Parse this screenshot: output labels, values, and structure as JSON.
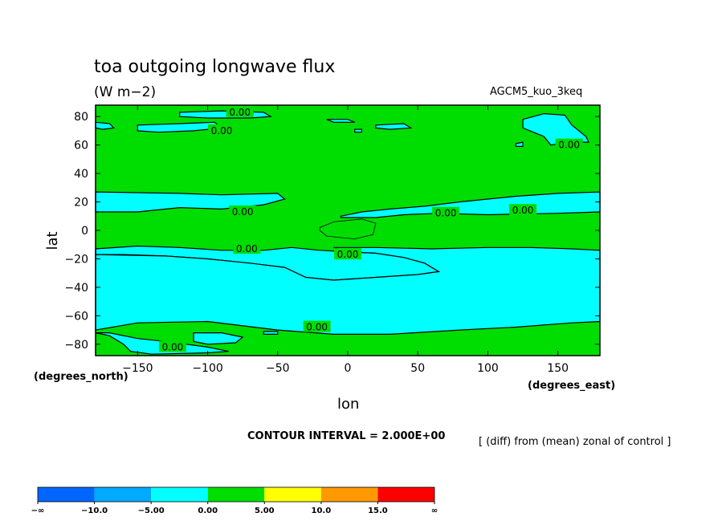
{
  "title": "toa outgoing longwave flux",
  "units": "(W m−2)",
  "model": "AGCM5_kuo_3keq",
  "contour_interval": "CONTOUR INTERVAL = 2.000E+00",
  "diff_note": "[ (diff) from (mean) zonal of control ]",
  "chart_data": {
    "type": "contour",
    "title": "toa outgoing longwave flux",
    "xlabel": "lon",
    "ylabel": "lat",
    "x_unit_label": "(degrees_east)",
    "y_unit_label": "(degrees_north)",
    "xlim": [
      -180,
      180
    ],
    "ylim": [
      -88,
      88
    ],
    "x_ticks": [
      -150,
      -100,
      -50,
      0,
      50,
      100,
      150
    ],
    "y_ticks": [
      80,
      60,
      40,
      20,
      0,
      -20,
      -40,
      -60,
      -80
    ],
    "x_tick_labels": [
      "−150",
      "−100",
      "−50",
      "0",
      "50",
      "100",
      "150"
    ],
    "y_tick_labels": [
      "80",
      "60",
      "40",
      "20",
      "0",
      "−20",
      "−40",
      "−60",
      "−80"
    ],
    "background_color": "#00dd00",
    "negative_color": "#00ffff",
    "contour_line_color": "#000000",
    "regions": [
      {
        "name": "north-tropical-band",
        "value_range": "negative",
        "points": [
          [
            -180,
            27
          ],
          [
            -120,
            26
          ],
          [
            -90,
            25
          ],
          [
            -50,
            26
          ],
          [
            -45,
            22
          ],
          [
            -60,
            18
          ],
          [
            -90,
            15
          ],
          [
            -120,
            16
          ],
          [
            -150,
            13
          ],
          [
            -180,
            13
          ]
        ]
      },
      {
        "name": "central-tropical-band",
        "value_range": "negative",
        "points": [
          [
            -5,
            10
          ],
          [
            10,
            13
          ],
          [
            30,
            15
          ],
          [
            55,
            17
          ],
          [
            80,
            20
          ],
          [
            100,
            22
          ],
          [
            120,
            24
          ],
          [
            150,
            26
          ],
          [
            180,
            27
          ],
          [
            180,
            13
          ],
          [
            150,
            12
          ],
          [
            100,
            11
          ],
          [
            65,
            12
          ],
          [
            40,
            11
          ],
          [
            20,
            9
          ],
          [
            -5,
            9
          ]
        ]
      },
      {
        "name": "southern-band",
        "value_range": "negative",
        "points": [
          [
            -180,
            -13
          ],
          [
            -150,
            -11
          ],
          [
            -120,
            -12
          ],
          [
            -90,
            -14
          ],
          [
            -60,
            -14
          ],
          [
            -40,
            -12
          ],
          [
            -20,
            -14
          ],
          [
            0,
            -15
          ],
          [
            20,
            -16
          ],
          [
            40,
            -19
          ],
          [
            55,
            -23
          ],
          [
            65,
            -29
          ],
          [
            50,
            -31
          ],
          [
            20,
            -33
          ],
          [
            -10,
            -35
          ],
          [
            -30,
            -33
          ],
          [
            -45,
            -26
          ],
          [
            -70,
            -23
          ],
          [
            -100,
            -20
          ],
          [
            -130,
            -18
          ],
          [
            -160,
            -17
          ],
          [
            -180,
            -17
          ]
        ]
      },
      {
        "name": "southern-band-east",
        "value_range": "negative",
        "points": [
          [
            -10,
            -12
          ],
          [
            20,
            -12
          ],
          [
            60,
            -13
          ],
          [
            100,
            -12
          ],
          [
            130,
            -12
          ],
          [
            160,
            -13
          ],
          [
            180,
            -14
          ],
          [
            180,
            -64
          ],
          [
            160,
            -65
          ],
          [
            120,
            -68
          ],
          [
            80,
            -70
          ],
          [
            30,
            -73
          ],
          [
            -10,
            -73
          ],
          [
            -50,
            -70
          ],
          [
            -100,
            -64
          ],
          [
            -150,
            -65
          ],
          [
            -180,
            -70
          ],
          [
            -180,
            -17
          ],
          [
            -130,
            -18
          ],
          [
            -100,
            -20
          ],
          [
            -70,
            -23
          ],
          [
            -45,
            -26
          ],
          [
            -30,
            -33
          ],
          [
            -10,
            -35
          ],
          [
            20,
            -33
          ],
          [
            50,
            -31
          ],
          [
            65,
            -29
          ],
          [
            55,
            -23
          ],
          [
            40,
            -19
          ],
          [
            20,
            -16
          ],
          [
            0,
            -15
          ]
        ]
      },
      {
        "name": "south-pole-patch",
        "value_range": "negative",
        "points": [
          [
            -180,
            -72
          ],
          [
            -170,
            -74
          ],
          [
            -160,
            -80
          ],
          [
            -155,
            -85
          ],
          [
            -140,
            -87
          ],
          [
            -100,
            -86
          ],
          [
            -85,
            -85
          ],
          [
            -100,
            -82
          ],
          [
            -130,
            -78
          ],
          [
            -150,
            -76
          ],
          [
            -170,
            -72
          ]
        ]
      },
      {
        "name": "antarctic-coast-patch",
        "value_range": "negative",
        "points": [
          [
            -110,
            -72
          ],
          [
            -90,
            -72
          ],
          [
            -75,
            -75
          ],
          [
            -80,
            -79
          ],
          [
            -100,
            -80
          ],
          [
            -110,
            -78
          ]
        ]
      },
      {
        "name": "arctic-patch-west",
        "value_range": "negative",
        "points": [
          [
            -120,
            83
          ],
          [
            -90,
            84
          ],
          [
            -60,
            83
          ],
          [
            -55,
            80
          ],
          [
            -70,
            79
          ],
          [
            -100,
            79
          ],
          [
            -120,
            80
          ]
        ]
      },
      {
        "name": "arctic-patch-center",
        "value_range": "negative",
        "points": [
          [
            -150,
            74
          ],
          [
            -120,
            75
          ],
          [
            -95,
            76
          ],
          [
            -90,
            72
          ],
          [
            -110,
            70
          ],
          [
            -135,
            69
          ],
          [
            -150,
            70
          ]
        ]
      },
      {
        "name": "arctic-small-1",
        "value_range": "negative",
        "points": [
          [
            -180,
            76
          ],
          [
            -170,
            75
          ],
          [
            -167,
            72
          ],
          [
            -175,
            71
          ],
          [
            -180,
            72
          ]
        ]
      },
      {
        "name": "arctic-small-2",
        "value_range": "negative",
        "points": [
          [
            20,
            74
          ],
          [
            40,
            75
          ],
          [
            45,
            72
          ],
          [
            30,
            71
          ],
          [
            20,
            72
          ]
        ]
      },
      {
        "name": "arctic-small-3",
        "value_range": "negative",
        "points": [
          [
            5,
            71
          ],
          [
            10,
            71
          ],
          [
            10,
            69
          ],
          [
            5,
            69
          ]
        ]
      },
      {
        "name": "arctic-small-4",
        "value_range": "negative",
        "points": [
          [
            -15,
            78
          ],
          [
            0,
            78
          ],
          [
            5,
            76
          ],
          [
            -10,
            76
          ]
        ]
      },
      {
        "name": "arctic-east-patch",
        "value_range": "negative",
        "points": [
          [
            125,
            78
          ],
          [
            140,
            82
          ],
          [
            155,
            81
          ],
          [
            160,
            74
          ],
          [
            170,
            66
          ],
          [
            172,
            62
          ],
          [
            160,
            62
          ],
          [
            145,
            60
          ],
          [
            140,
            66
          ],
          [
            125,
            72
          ]
        ]
      },
      {
        "name": "arctic-east-small",
        "value_range": "negative",
        "points": [
          [
            120,
            61
          ],
          [
            125,
            62
          ],
          [
            125,
            59
          ],
          [
            120,
            59
          ]
        ]
      },
      {
        "name": "south-contour-patch",
        "value_range": "negative",
        "points": [
          [
            -60,
            -71
          ],
          [
            -50,
            -71
          ],
          [
            -50,
            -73
          ],
          [
            -60,
            -73
          ]
        ]
      }
    ],
    "closed_contours": [
      {
        "name": "equatorial-positive-loop",
        "points": [
          [
            -20,
            2
          ],
          [
            -10,
            6
          ],
          [
            10,
            8
          ],
          [
            20,
            5
          ],
          [
            18,
            -3
          ],
          [
            5,
            -6
          ],
          [
            -15,
            -4
          ],
          [
            -20,
            0
          ]
        ]
      }
    ],
    "contour_labels": [
      {
        "text": "0.00",
        "lon": -77,
        "lat": 83
      },
      {
        "text": "0.00",
        "lon": -90,
        "lat": 70
      },
      {
        "text": "0.00",
        "lon": -75,
        "lat": 13
      },
      {
        "text": "0.00",
        "lon": -72,
        "lat": -13
      },
      {
        "text": "0.00",
        "lon": 0,
        "lat": -17
      },
      {
        "text": "0.00",
        "lon": 125,
        "lat": 14
      },
      {
        "text": "0.00",
        "lon": 70,
        "lat": 12
      },
      {
        "text": "0.00",
        "lon": 158,
        "lat": 60
      },
      {
        "text": "0.00",
        "lon": -22,
        "lat": -68
      },
      {
        "text": "0.00",
        "lon": -125,
        "lat": -82
      }
    ]
  },
  "colorbar": {
    "labels": [
      "−∞",
      "−10.0",
      "−5.00",
      "0.00",
      "5.00",
      "10.0",
      "15.0",
      "∞"
    ],
    "colors": [
      "#0066ff",
      "#00aaff",
      "#00ffff",
      "#00dd00",
      "#ffff00",
      "#ff9900",
      "#ff0000"
    ]
  }
}
